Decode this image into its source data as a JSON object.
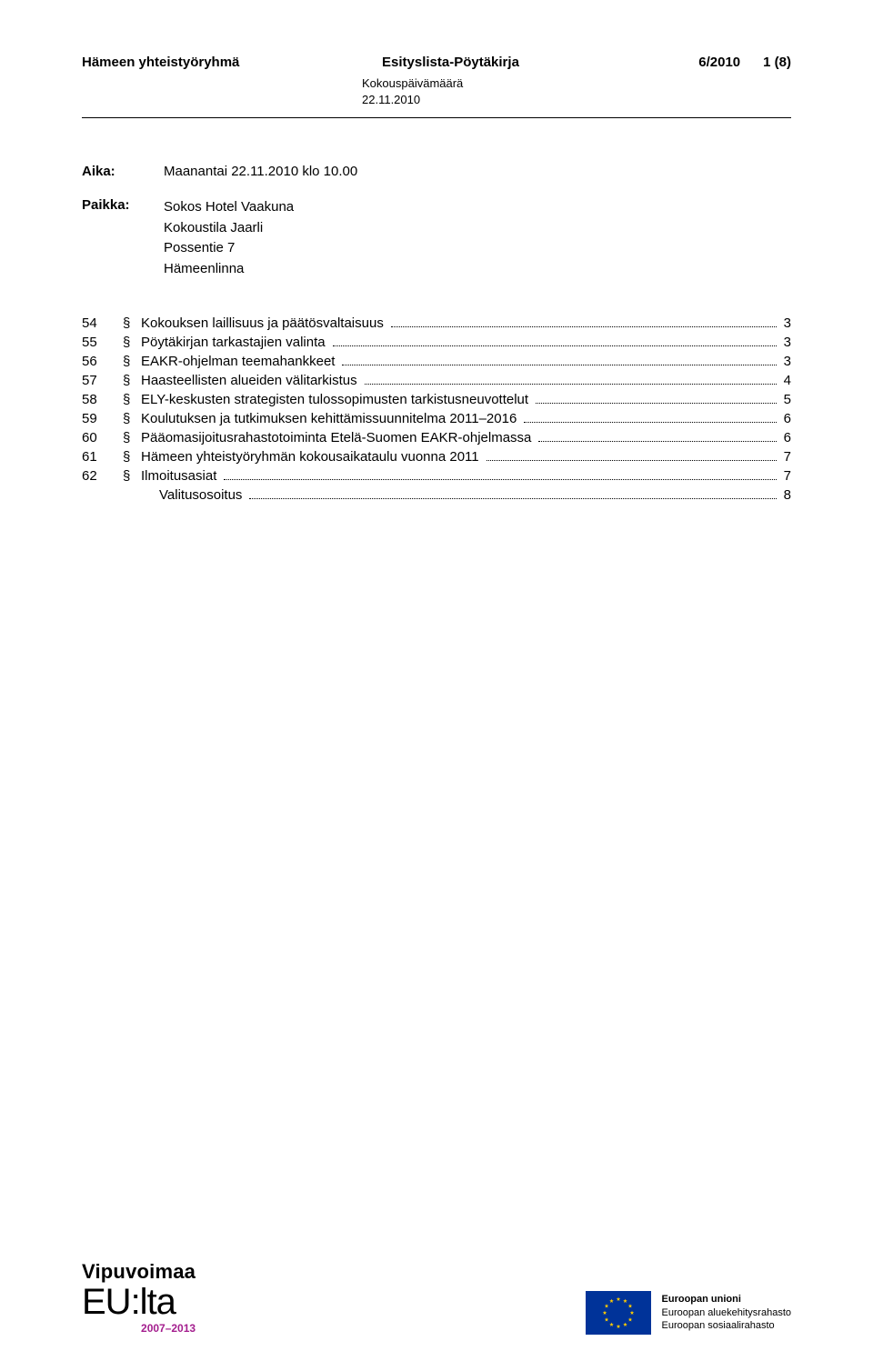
{
  "header": {
    "org": "Hämeen yhteistyöryhmä",
    "doc_type": "Esityslista-Pöytäkirja",
    "doc_num": "6/2010",
    "page": "1 (8)",
    "sub_label": "Kokouspäivämäärä",
    "date": "22.11.2010"
  },
  "meeting": {
    "time_label": "Aika:",
    "time_value": "Maanantai 22.11.2010 klo 10.00",
    "place_label": "Paikka:",
    "place_lines": [
      "Sokos Hotel Vaakuna",
      "Kokoustila Jaarli",
      "Possentie 7",
      "Hämeenlinna"
    ]
  },
  "toc": [
    {
      "num": "54",
      "sym": "§",
      "title": "Kokouksen laillisuus ja päätösvaltaisuus",
      "page": "3"
    },
    {
      "num": "55",
      "sym": "§",
      "title": "Pöytäkirjan tarkastajien valinta",
      "page": "3"
    },
    {
      "num": "56",
      "sym": "§",
      "title": "EAKR-ohjelman teemahankkeet",
      "page": "3"
    },
    {
      "num": "57",
      "sym": "§",
      "title": "Haasteellisten alueiden välitarkistus",
      "page": "4"
    },
    {
      "num": "58",
      "sym": "§",
      "title": "ELY-keskusten strategisten tulossopimusten tarkistusneuvottelut",
      "page": "5"
    },
    {
      "num": "59",
      "sym": "§",
      "title": "Koulutuksen ja tutkimuksen kehittämissuunnitelma 2011–2016",
      "page": "6"
    },
    {
      "num": "60",
      "sym": "§",
      "title": "Pääomasijoitusrahastotoiminta Etelä-Suomen EAKR-ohjelmassa",
      "page": "6"
    },
    {
      "num": "61",
      "sym": "§",
      "title": "Hämeen yhteistyöryhmän kokousaikataulu vuonna 2011",
      "page": "7"
    },
    {
      "num": "62",
      "sym": "§",
      "title": "Ilmoitusasiat",
      "page": "7"
    },
    {
      "num": "",
      "sym": "",
      "title": "Valitusosoitus",
      "page": "8",
      "indent": true
    }
  ],
  "footer": {
    "vipu": "Vipuvoimaa",
    "eulta": "EU:lta",
    "period": "2007–2013",
    "eu_title": "Euroopan unioni",
    "eu_line1": "Euroopan aluekehitysrahasto",
    "eu_line2": "Euroopan sosiaalirahasto",
    "flag_bg": "#003399",
    "star_color": "#ffcc00"
  }
}
